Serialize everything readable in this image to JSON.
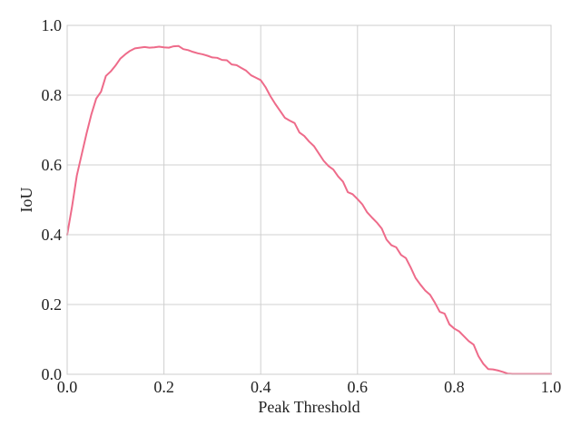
{
  "chart_data": {
    "type": "line",
    "title": "",
    "xlabel": "Peak Threshold",
    "ylabel": "IoU",
    "xlim": [
      0.0,
      1.0
    ],
    "ylim": [
      0.0,
      1.0
    ],
    "xticks": [
      "0.0",
      "0.2",
      "0.4",
      "0.6",
      "0.8",
      "1.0"
    ],
    "yticks": [
      "0.0",
      "0.2",
      "0.4",
      "0.6",
      "0.8",
      "1.0"
    ],
    "grid": true,
    "colors": {
      "line": "#ee6b8a",
      "grid": "#d0d0d0",
      "axes_edge": "#cccccc"
    },
    "series": [
      {
        "x": [
          0.0,
          0.01,
          0.02,
          0.03,
          0.04,
          0.05,
          0.06,
          0.07,
          0.08,
          0.09,
          0.1,
          0.11,
          0.12,
          0.13,
          0.14,
          0.15,
          0.16,
          0.17,
          0.18,
          0.19,
          0.2,
          0.21,
          0.22,
          0.23,
          0.24,
          0.25,
          0.26,
          0.27,
          0.28,
          0.29,
          0.3,
          0.31,
          0.32,
          0.33,
          0.34,
          0.35,
          0.36,
          0.37,
          0.38,
          0.39,
          0.4,
          0.41,
          0.42,
          0.43,
          0.44,
          0.45,
          0.46,
          0.47,
          0.48,
          0.49,
          0.5,
          0.51,
          0.52,
          0.53,
          0.54,
          0.55,
          0.56,
          0.57,
          0.58,
          0.59,
          0.6,
          0.61,
          0.62,
          0.63,
          0.64,
          0.65,
          0.66,
          0.67,
          0.68,
          0.69,
          0.7,
          0.71,
          0.72,
          0.73,
          0.74,
          0.75,
          0.76,
          0.77,
          0.78,
          0.79,
          0.8,
          0.81,
          0.82,
          0.83,
          0.84,
          0.85,
          0.86,
          0.87,
          0.88,
          0.89,
          0.9,
          0.91,
          0.92,
          0.93,
          0.94,
          0.95,
          0.96,
          0.97,
          0.98,
          0.99,
          1.0
        ],
        "y": [
          0.4,
          0.48,
          0.57,
          0.63,
          0.69,
          0.745,
          0.79,
          0.81,
          0.855,
          0.868,
          0.885,
          0.905,
          0.917,
          0.927,
          0.934,
          0.936,
          0.938,
          0.936,
          0.937,
          0.939,
          0.937,
          0.936,
          0.94,
          0.941,
          0.932,
          0.929,
          0.924,
          0.92,
          0.917,
          0.913,
          0.908,
          0.907,
          0.901,
          0.9,
          0.888,
          0.886,
          0.878,
          0.87,
          0.857,
          0.85,
          0.843,
          0.823,
          0.797,
          0.775,
          0.755,
          0.735,
          0.727,
          0.72,
          0.693,
          0.683,
          0.667,
          0.654,
          0.633,
          0.612,
          0.597,
          0.587,
          0.567,
          0.552,
          0.522,
          0.516,
          0.502,
          0.487,
          0.464,
          0.449,
          0.435,
          0.418,
          0.386,
          0.37,
          0.364,
          0.342,
          0.333,
          0.306,
          0.276,
          0.257,
          0.24,
          0.228,
          0.205,
          0.179,
          0.174,
          0.143,
          0.131,
          0.123,
          0.109,
          0.095,
          0.085,
          0.052,
          0.03,
          0.015,
          0.014,
          0.011,
          0.007,
          0.002,
          0.001,
          0.001,
          0.001,
          0.001,
          0.001,
          0.001,
          0.001,
          0.001,
          0.001
        ]
      }
    ]
  }
}
